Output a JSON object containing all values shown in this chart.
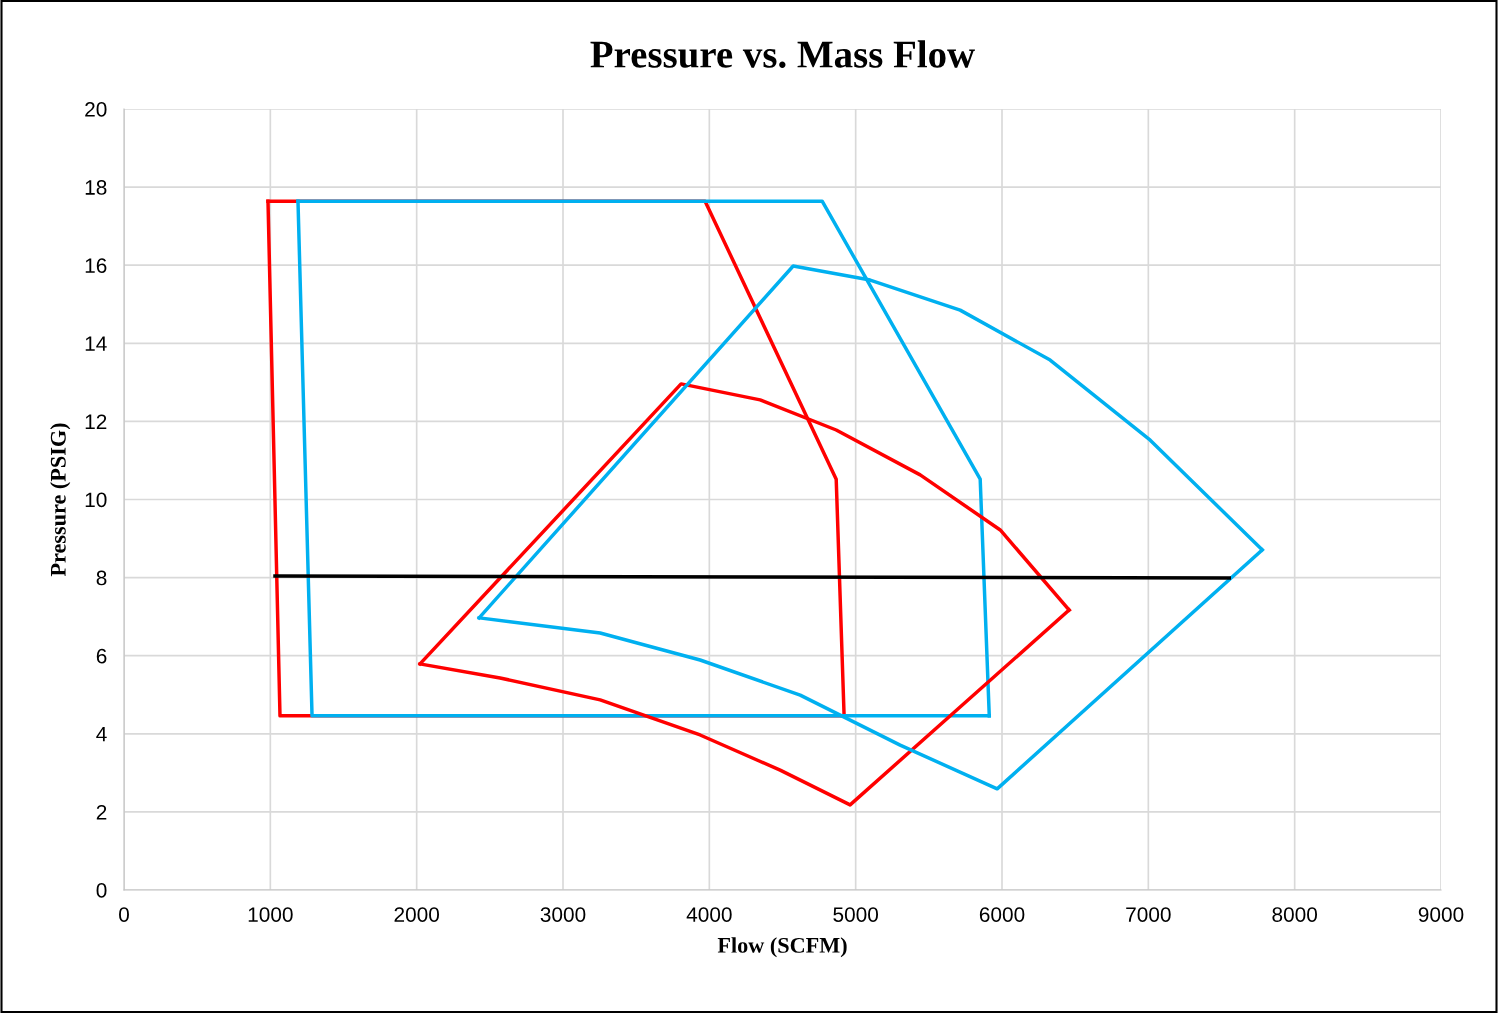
{
  "chart_data": {
    "type": "line",
    "title": "Pressure vs. Mass Flow",
    "xlabel": "Flow (SCFM)",
    "ylabel": "Pressure (PSIG)",
    "xlim": [
      0,
      9000
    ],
    "xticks": [
      0,
      1000,
      2000,
      3000,
      4000,
      5000,
      6000,
      7000,
      8000,
      9000
    ],
    "ylim": [
      0,
      20
    ],
    "yticks": [
      0,
      2,
      4,
      6,
      8,
      10,
      12,
      14,
      16,
      18,
      20
    ],
    "grid": true,
    "legend": false,
    "line_style": "solid",
    "series": [
      {
        "color": "#ff0000",
        "x": [
          984,
          3971,
          4867,
          4921
        ],
        "values": [
          17.64,
          17.64,
          10.52,
          4.46
        ]
      },
      {
        "color": "#ff0000",
        "x": [
          4921,
          1066,
          984
        ],
        "values": [
          4.46,
          4.46,
          17.64
        ]
      },
      {
        "color": "#00b0f0",
        "x": [
          1189,
          4771,
          5851,
          5913
        ],
        "values": [
          17.64,
          17.64,
          10.52,
          4.46
        ]
      },
      {
        "color": "#00b0f0",
        "x": [
          5913,
          1285,
          1189
        ],
        "values": [
          4.46,
          4.46,
          17.64
        ]
      },
      {
        "color": "#ff0000",
        "x": [
          2023,
          3807,
          4347,
          4867,
          5441,
          5988,
          6459
        ],
        "values": [
          5.79,
          12.96,
          12.55,
          11.78,
          10.63,
          9.22,
          7.17
        ]
      },
      {
        "color": "#ff0000",
        "x": [
          6459,
          4962,
          4484,
          3937,
          3254,
          2570,
          2023
        ],
        "values": [
          7.17,
          2.18,
          3.07,
          3.97,
          4.87,
          5.43,
          5.79
        ]
      },
      {
        "color": "#00b0f0",
        "x": [
          2427,
          4573,
          5099,
          5714,
          6329,
          7013,
          7778
        ],
        "values": [
          6.97,
          15.98,
          15.62,
          14.85,
          13.57,
          11.52,
          8.71
        ]
      },
      {
        "color": "#00b0f0",
        "x": [
          7778,
          5967,
          5304,
          4621,
          3937,
          3254,
          2427
        ],
        "values": [
          8.71,
          2.59,
          3.71,
          4.99,
          5.89,
          6.58,
          6.97
        ]
      },
      {
        "color": "#000000",
        "x": [
          1032,
          7553
        ],
        "values": [
          8.04,
          7.99
        ]
      }
    ]
  }
}
